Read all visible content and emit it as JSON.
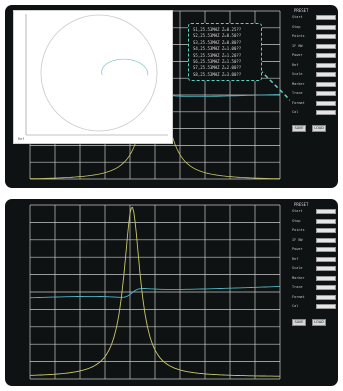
{
  "colors": {
    "screen_bg": "#0f1213",
    "grid": "#c9c9c9",
    "trace_yellow": "#c9c86a",
    "trace_cyan": "#4fb3c0",
    "marker_dashed": "#5fd0c0"
  },
  "top_screen": {
    "sidebar_title": "PRESET",
    "readout_lines": [
      "S1,25.53MHZ  Z=0.25??",
      "S2,25.53MHZ  Z=0.50??",
      "S3,25.53MHZ  Z=0.80??",
      "S4,25.53MHZ  Z=1.00??",
      "S5,25.53MHZ  Z=1.20??",
      "S6,25.53MHZ  Z=1.50??",
      "S7,25.53MHZ  Z=2.00??",
      "S8,25.53MHZ  Z=3.00??"
    ],
    "smith_label": "Ref",
    "buttons": [
      "SAVE",
      "LOAD"
    ]
  },
  "bottom_screen": {
    "sidebar_title": "PRESET",
    "buttons": [
      "SAVE",
      "LOAD"
    ]
  },
  "sidebar_rows": [
    "Start",
    "Stop",
    "Points",
    "IF BW",
    "Power",
    "Ref",
    "Scale",
    "Marker",
    "Trace",
    "Format",
    "Cal"
  ]
}
